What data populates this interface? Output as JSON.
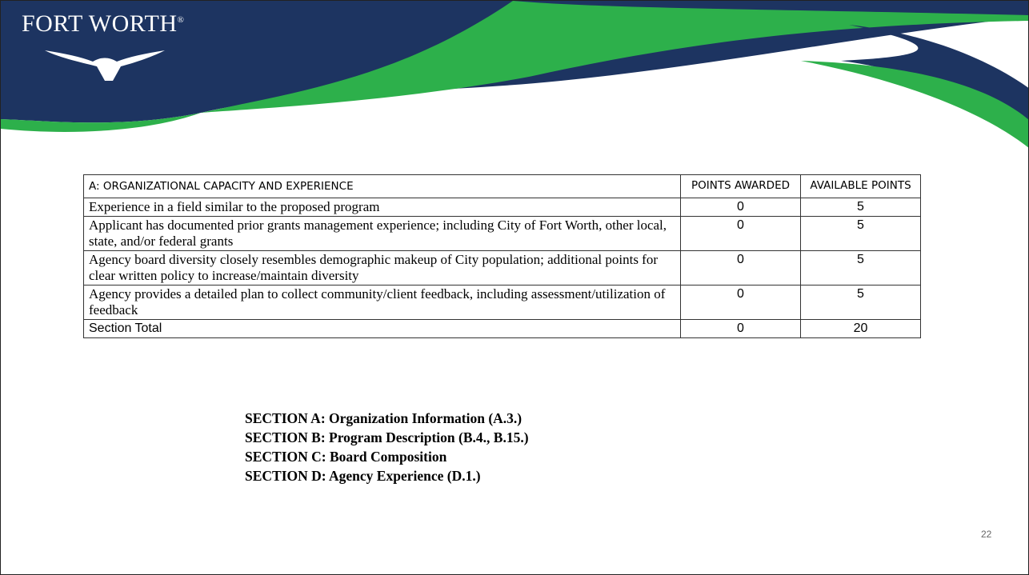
{
  "header": {
    "logo": "FORT WORTH",
    "logo_mark": "®"
  },
  "table": {
    "header": [
      "A: ORGANIZATIONAL CAPACITY AND EXPERIENCE",
      "POINTS AWARDED",
      "AVAILABLE POINTS"
    ],
    "rows": [
      [
        "Experience in a field similar to the proposed program",
        0,
        5
      ],
      [
        "Applicant has documented prior grants management experience; including City of Fort Worth, other local, state, and/or federal grants",
        0,
        5
      ],
      [
        "Agency board diversity closely resembles demographic makeup of City population; additional points for clear written policy to increase/maintain diversity",
        0,
        5
      ],
      [
        "Agency provides a detailed plan to collect community/client feedback, including assessment/utilization of feedback",
        0,
        5
      ],
      [
        "Section Total",
        0,
        20
      ]
    ]
  },
  "sections": [
    "SECTION A: Organization Information (A.3.)",
    "SECTION B: Program Description (B.4., B.15.)",
    "SECTION C: Board Composition",
    "SECTION D: Agency Experience (D.1.)"
  ],
  "page_number": "22"
}
